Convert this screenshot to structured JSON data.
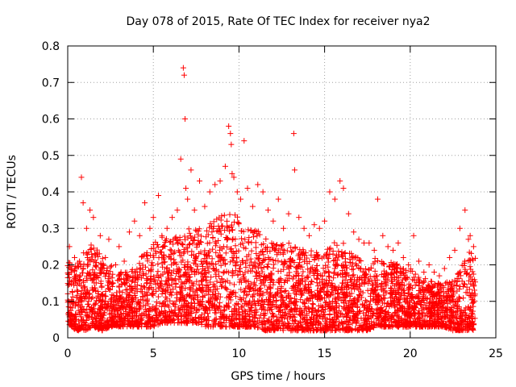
{
  "chart_data": {
    "type": "scatter",
    "title": "Day 078 of 2015, Rate Of TEC Index for receiver nya2",
    "xlabel": "GPS time / hours",
    "ylabel": "ROTI / TECUs",
    "xlim": [
      0,
      25
    ],
    "ylim": [
      0,
      0.8
    ],
    "xticks": [
      0,
      5,
      10,
      15,
      20,
      25
    ],
    "yticks": [
      0,
      0.1,
      0.2,
      0.3,
      0.4,
      0.5,
      0.6,
      0.7,
      0.8
    ],
    "xtick_labels": [
      "0",
      "5",
      "10",
      "15",
      "20",
      "25"
    ],
    "ytick_labels": [
      "0",
      "0.1",
      "0.2",
      "0.3",
      "0.4",
      "0.5",
      "0.6",
      "0.7",
      "0.8"
    ],
    "grid": true,
    "marker": "+",
    "color": "#ff0000",
    "x": [
      0.1,
      0.4,
      0.8,
      0.9,
      1.1,
      1.3,
      1.5,
      1.9,
      2.2,
      2.4,
      2.8,
      3.0,
      3.3,
      3.6,
      3.9,
      4.2,
      4.5,
      4.8,
      5.0,
      5.3,
      5.5,
      5.8,
      6.1,
      6.4,
      6.6,
      6.75,
      6.8,
      6.85,
      6.9,
      7.0,
      7.2,
      7.4,
      7.7,
      8.0,
      8.3,
      8.6,
      8.9,
      9.2,
      9.4,
      9.5,
      9.55,
      9.6,
      9.7,
      9.9,
      10.1,
      10.3,
      10.5,
      10.8,
      11.1,
      11.4,
      11.7,
      12.0,
      12.3,
      12.6,
      12.9,
      13.2,
      13.25,
      13.5,
      13.8,
      14.1,
      14.4,
      14.7,
      15.0,
      15.3,
      15.6,
      15.9,
      16.1,
      16.4,
      16.7,
      17.0,
      17.3,
      17.6,
      17.9,
      18.1,
      18.4,
      18.7,
      19.0,
      19.3,
      19.6,
      19.9,
      20.2,
      20.5,
      20.8,
      21.1,
      21.4,
      21.7,
      22.0,
      22.3,
      22.6,
      22.9,
      23.2,
      23.4,
      23.5,
      23.7
    ],
    "y": [
      0.25,
      0.22,
      0.44,
      0.37,
      0.3,
      0.35,
      0.33,
      0.28,
      0.22,
      0.27,
      0.2,
      0.25,
      0.21,
      0.29,
      0.32,
      0.28,
      0.37,
      0.3,
      0.33,
      0.39,
      0.28,
      0.3,
      0.33,
      0.35,
      0.49,
      0.74,
      0.72,
      0.6,
      0.41,
      0.38,
      0.46,
      0.35,
      0.43,
      0.36,
      0.4,
      0.42,
      0.43,
      0.47,
      0.58,
      0.56,
      0.53,
      0.45,
      0.44,
      0.4,
      0.38,
      0.54,
      0.41,
      0.36,
      0.42,
      0.4,
      0.35,
      0.32,
      0.38,
      0.3,
      0.34,
      0.56,
      0.46,
      0.33,
      0.3,
      0.28,
      0.31,
      0.3,
      0.32,
      0.4,
      0.38,
      0.43,
      0.41,
      0.34,
      0.29,
      0.27,
      0.26,
      0.26,
      0.24,
      0.38,
      0.28,
      0.25,
      0.24,
      0.26,
      0.22,
      0.2,
      0.28,
      0.21,
      0.18,
      0.2,
      0.18,
      0.17,
      0.19,
      0.22,
      0.24,
      0.3,
      0.35,
      0.27,
      0.28,
      0.25
    ],
    "density_band": {
      "x": [
        0,
        0.5,
        1,
        1.5,
        2,
        2.5,
        3,
        3.5,
        4,
        4.5,
        5,
        5.5,
        6,
        6.5,
        7,
        7.5,
        8,
        8.5,
        9,
        9.5,
        10,
        10.5,
        11,
        11.5,
        12,
        12.5,
        13,
        13.5,
        14,
        14.5,
        15,
        15.5,
        16,
        16.5,
        17,
        17.5,
        18,
        18.5,
        19,
        19.5,
        20,
        20.5,
        21,
        21.5,
        22,
        22.5,
        23,
        23.5,
        23.8
      ],
      "low": [
        0.04,
        0.02,
        0.02,
        0.03,
        0.02,
        0.03,
        0.03,
        0.03,
        0.03,
        0.03,
        0.03,
        0.04,
        0.04,
        0.04,
        0.04,
        0.04,
        0.03,
        0.03,
        0.03,
        0.03,
        0.03,
        0.03,
        0.03,
        0.02,
        0.02,
        0.02,
        0.02,
        0.02,
        0.02,
        0.02,
        0.02,
        0.02,
        0.02,
        0.02,
        0.02,
        0.02,
        0.03,
        0.03,
        0.03,
        0.03,
        0.03,
        0.03,
        0.03,
        0.03,
        0.03,
        0.02,
        0.02,
        0.02,
        0.02
      ],
      "high": [
        0.22,
        0.2,
        0.24,
        0.26,
        0.22,
        0.2,
        0.18,
        0.18,
        0.2,
        0.24,
        0.26,
        0.28,
        0.27,
        0.28,
        0.3,
        0.3,
        0.3,
        0.33,
        0.35,
        0.36,
        0.33,
        0.3,
        0.3,
        0.28,
        0.26,
        0.26,
        0.26,
        0.25,
        0.24,
        0.24,
        0.24,
        0.26,
        0.27,
        0.24,
        0.22,
        0.2,
        0.22,
        0.22,
        0.21,
        0.2,
        0.19,
        0.17,
        0.16,
        0.15,
        0.15,
        0.16,
        0.2,
        0.24,
        0.22
      ]
    }
  }
}
